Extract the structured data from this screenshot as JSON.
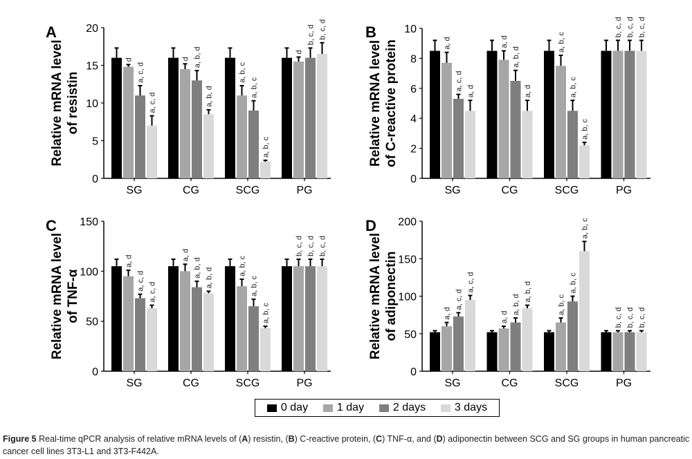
{
  "colors": {
    "0 day": "#000000",
    "1 day": "#a6a6a6",
    "2 days": "#7f7f7f",
    "3 days": "#d9d9d9"
  },
  "legend": [
    {
      "label": "0 day",
      "color": "#000000"
    },
    {
      "label": "1 day",
      "color": "#a6a6a6"
    },
    {
      "label": "2 days",
      "color": "#7f7f7f"
    },
    {
      "label": "3 days",
      "color": "#d9d9d9"
    }
  ],
  "caption": {
    "figure_label": "Figure 5",
    "text_parts": [
      {
        "t": " Real-time qPCR analysis of relative mRNA levels of (",
        "b": false
      },
      {
        "t": "A",
        "b": true
      },
      {
        "t": ") resistin, (",
        "b": false
      },
      {
        "t": "B",
        "b": true
      },
      {
        "t": ") C-reactive protein, (",
        "b": false
      },
      {
        "t": "C",
        "b": true
      },
      {
        "t": ") TNF-α, and (",
        "b": false
      },
      {
        "t": "D",
        "b": true
      },
      {
        "t": ") adiponectin between SCG and SG groups in human pancreatic cancer cell lines 3T3-L1 and 3T3-F442A.",
        "b": false
      }
    ]
  },
  "chart_data": [
    {
      "panel": "A",
      "type": "bar",
      "ylabel_lines": [
        "Relative mRNA level",
        "of resistin"
      ],
      "categories": [
        "SG",
        "CG",
        "SCG",
        "PG"
      ],
      "ylim": [
        0,
        20
      ],
      "yticks": [
        0,
        5,
        10,
        15,
        20
      ],
      "series": [
        {
          "name": "0 day",
          "values": [
            16,
            16,
            16,
            16
          ],
          "errors": [
            1.3,
            1.3,
            1.3,
            1.3
          ]
        },
        {
          "name": "1 day",
          "values": [
            14.8,
            14.5,
            11,
            15.5
          ],
          "errors": [
            0.3,
            0.7,
            1.3,
            0.6
          ]
        },
        {
          "name": "2 days",
          "values": [
            11,
            13,
            9,
            16
          ],
          "errors": [
            1.3,
            1.3,
            1.3,
            1.3
          ]
        },
        {
          "name": "3 days",
          "values": [
            7,
            8.5,
            2.2,
            16.5
          ],
          "errors": [
            1.3,
            0.6,
            0.2,
            1.5
          ]
        }
      ],
      "annotations": [
        [
          "",
          "d",
          "a, c, d",
          "a, c, d"
        ],
        [
          "",
          "d",
          "a, b, d",
          "a, b, d"
        ],
        [
          "",
          "a, b, c",
          "a, b, c",
          "a, b, c"
        ],
        [
          "",
          "d",
          "b, c, d",
          "b, c, d"
        ]
      ]
    },
    {
      "panel": "B",
      "type": "bar",
      "ylabel_lines": [
        "Relative mRNA level",
        "of C-reactive protein"
      ],
      "categories": [
        "SG",
        "CG",
        "SCG",
        "PG"
      ],
      "ylim": [
        0,
        10
      ],
      "yticks": [
        0,
        2,
        4,
        6,
        8,
        10
      ],
      "series": [
        {
          "name": "0 day",
          "values": [
            8.5,
            8.5,
            8.5,
            8.5
          ],
          "errors": [
            0.7,
            0.7,
            0.7,
            0.7
          ]
        },
        {
          "name": "1 day",
          "values": [
            7.7,
            7.9,
            7.5,
            8.5
          ],
          "errors": [
            0.7,
            0.6,
            0.7,
            0.7
          ]
        },
        {
          "name": "2 days",
          "values": [
            5.3,
            6.5,
            4.5,
            8.5
          ],
          "errors": [
            0.3,
            0.7,
            0.7,
            0.7
          ]
        },
        {
          "name": "3 days",
          "values": [
            4.5,
            4.5,
            2.2,
            8.5
          ],
          "errors": [
            0.7,
            0.7,
            0.2,
            0.7
          ]
        }
      ],
      "annotations": [
        [
          "",
          "a, d",
          "a, c, d",
          "a, d"
        ],
        [
          "",
          "a, d",
          "a, b, d",
          "a, d"
        ],
        [
          "",
          "a, b, c",
          "a, b, c",
          "a, b, c"
        ],
        [
          "",
          "b, c, d",
          "b, c, d",
          "b, c, d"
        ]
      ]
    },
    {
      "panel": "C",
      "type": "bar",
      "ylabel_lines": [
        "Relative mRNA level",
        "of TNF-α"
      ],
      "categories": [
        "SG",
        "CG",
        "SCG",
        "PG"
      ],
      "ylim": [
        0,
        150
      ],
      "yticks": [
        0,
        50,
        100,
        150
      ],
      "series": [
        {
          "name": "0 day",
          "values": [
            105,
            105,
            105,
            105
          ],
          "errors": [
            7,
            7,
            7,
            7
          ]
        },
        {
          "name": "1 day",
          "values": [
            95,
            100,
            85,
            105
          ],
          "errors": [
            6,
            7,
            7,
            7
          ]
        },
        {
          "name": "2 days",
          "values": [
            73,
            84,
            65,
            105
          ],
          "errors": [
            4,
            6,
            7,
            7
          ]
        },
        {
          "name": "3 days",
          "values": [
            63,
            78,
            43,
            105
          ],
          "errors": [
            3,
            2,
            2,
            7
          ]
        }
      ],
      "annotations": [
        [
          "",
          "a, d",
          "a, c, d",
          "a, c, d"
        ],
        [
          "",
          "a, d",
          "a, b, d",
          "a, b, d"
        ],
        [
          "",
          "a, b, c",
          "a, b, c",
          "a, b, c"
        ],
        [
          "",
          "b, c, d",
          "b, c, d",
          "b, c, d"
        ]
      ]
    },
    {
      "panel": "D",
      "type": "bar",
      "ylabel_lines": [
        "Relative mRNA level",
        "of adiponectin"
      ],
      "categories": [
        "SG",
        "CG",
        "SCG",
        "PG"
      ],
      "ylim": [
        0,
        200
      ],
      "yticks": [
        0,
        50,
        100,
        150,
        200
      ],
      "series": [
        {
          "name": "0 day",
          "values": [
            52,
            52,
            52,
            52
          ],
          "errors": [
            2,
            2,
            2,
            2
          ]
        },
        {
          "name": "1 day",
          "values": [
            60,
            57,
            65,
            52
          ],
          "errors": [
            5,
            3,
            6,
            2
          ]
        },
        {
          "name": "2 days",
          "values": [
            73,
            65,
            93,
            52
          ],
          "errors": [
            5,
            6,
            7,
            2
          ]
        },
        {
          "name": "3 days",
          "values": [
            95,
            84,
            160,
            52
          ],
          "errors": [
            6,
            4,
            13,
            2
          ]
        }
      ],
      "annotations": [
        [
          "",
          "a, d",
          "a, c, d",
          "a, c, d"
        ],
        [
          "",
          "a, d",
          "a, b, d",
          "a, b, d"
        ],
        [
          "",
          "a, b, c",
          "a, b, c",
          "a, b, c"
        ],
        [
          "",
          "b, c, d",
          "b, c, d",
          "b, c, d"
        ]
      ]
    }
  ]
}
